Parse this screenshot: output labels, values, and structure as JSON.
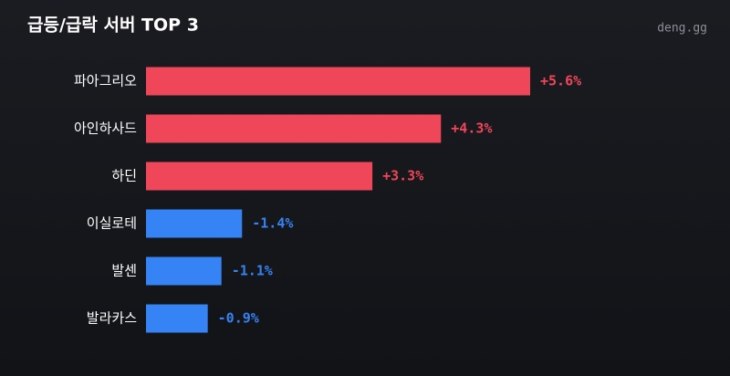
{
  "chart_data": {
    "type": "bar",
    "orientation": "horizontal",
    "title": "급등/급락 서버 TOP 3",
    "watermark": "deng.gg",
    "categories": [
      "파아그리오",
      "아인하사드",
      "하딘",
      "이실로테",
      "발센",
      "발라카스"
    ],
    "values": [
      5.6,
      4.3,
      3.3,
      -1.4,
      -1.1,
      -0.9
    ],
    "value_labels": [
      "+5.6%",
      "+4.3%",
      "+3.3%",
      "-1.4%",
      "-1.1%",
      "-0.9%"
    ],
    "positive_color": "#f0465a",
    "negative_color": "#3583f5"
  }
}
